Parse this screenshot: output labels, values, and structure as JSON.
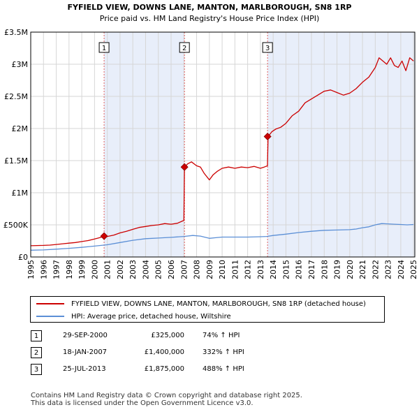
{
  "colors": {
    "price_line": "#cc0000",
    "hpi_line": "#5b8fd6",
    "band": "#e8eefa",
    "grid": "#d6d6d6",
    "marker_line": "#e06060"
  },
  "chart_data": {
    "type": "line",
    "title": "FYFIELD VIEW, DOWNS LANE, MANTON, MARLBOROUGH, SN8 1RP",
    "subtitle": "Price paid vs. HM Land Registry's House Price Index (HPI)",
    "xlabel": "",
    "ylabel": "",
    "xlim": [
      1995,
      2025.1
    ],
    "ylim": [
      0,
      3500000
    ],
    "x_ticks": [
      "1995",
      "1996",
      "1997",
      "1998",
      "1999",
      "2000",
      "2001",
      "2002",
      "2003",
      "2004",
      "2005",
      "2006",
      "2007",
      "2008",
      "2009",
      "2010",
      "2011",
      "2012",
      "2013",
      "2014",
      "2015",
      "2016",
      "2017",
      "2018",
      "2019",
      "2020",
      "2021",
      "2022",
      "2023",
      "2024",
      "2025"
    ],
    "y_ticks": [
      {
        "value": 0,
        "label": "£0"
      },
      {
        "value": 500000,
        "label": "£500K"
      },
      {
        "value": 1000000,
        "label": "£1M"
      },
      {
        "value": 1500000,
        "label": "£1.5M"
      },
      {
        "value": 2000000,
        "label": "£2M"
      },
      {
        "value": 2500000,
        "label": "£2.5M"
      },
      {
        "value": 3000000,
        "label": "£3M"
      },
      {
        "value": 3500000,
        "label": "£3.5M"
      }
    ],
    "grid": true,
    "series": [
      {
        "name": "FYFIELD VIEW, DOWNS LANE, MANTON, MARLBOROUGH, SN8 1RP (detached house)",
        "color": "#cc0000",
        "x": [
          1995.0,
          1995.5,
          1996.0,
          1996.5,
          1997.0,
          1997.5,
          1998.0,
          1998.5,
          1999.0,
          1999.5,
          2000.0,
          2000.5,
          2000.75,
          2001.0,
          2001.5,
          2002.0,
          2002.5,
          2003.0,
          2003.5,
          2004.0,
          2004.5,
          2005.0,
          2005.5,
          2006.0,
          2006.5,
          2007.0,
          2007.05,
          2007.3,
          2007.6,
          2008.0,
          2008.3,
          2008.6,
          2009.0,
          2009.3,
          2009.6,
          2010.0,
          2010.5,
          2011.0,
          2011.5,
          2012.0,
          2012.5,
          2013.0,
          2013.3,
          2013.55,
          2013.6,
          2013.9,
          2014.2,
          2014.6,
          2015.0,
          2015.5,
          2016.0,
          2016.5,
          2017.0,
          2017.5,
          2018.0,
          2018.5,
          2019.0,
          2019.5,
          2020.0,
          2020.5,
          2021.0,
          2021.5,
          2022.0,
          2022.3,
          2022.6,
          2022.9,
          2023.2,
          2023.5,
          2023.8,
          2024.1,
          2024.4,
          2024.7,
          2025.0
        ],
        "values": [
          175000,
          178000,
          180000,
          185000,
          195000,
          205000,
          215000,
          225000,
          240000,
          255000,
          280000,
          305000,
          325000,
          320000,
          340000,
          375000,
          400000,
          430000,
          460000,
          475000,
          490000,
          500000,
          520000,
          510000,
          525000,
          570000,
          1400000,
          1450000,
          1480000,
          1420000,
          1400000,
          1300000,
          1200000,
          1280000,
          1330000,
          1380000,
          1400000,
          1380000,
          1400000,
          1390000,
          1410000,
          1380000,
          1400000,
          1420000,
          1875000,
          1950000,
          1990000,
          2020000,
          2080000,
          2200000,
          2270000,
          2400000,
          2460000,
          2520000,
          2580000,
          2600000,
          2560000,
          2520000,
          2550000,
          2620000,
          2720000,
          2800000,
          2950000,
          3100000,
          3050000,
          3000000,
          3100000,
          2980000,
          2950000,
          3050000,
          2900000,
          3100000,
          3050000
        ]
      },
      {
        "name": "HPI: Average price, detached house, Wiltshire",
        "color": "#5b8fd6",
        "x": [
          1995.0,
          1996.0,
          1997.0,
          1998.0,
          1999.0,
          2000.0,
          2001.0,
          2002.0,
          2003.0,
          2004.0,
          2005.0,
          2006.0,
          2007.0,
          2007.7,
          2008.3,
          2009.0,
          2009.5,
          2010.0,
          2011.0,
          2012.0,
          2013.0,
          2013.5,
          2014.0,
          2015.0,
          2016.0,
          2017.0,
          2018.0,
          2019.0,
          2020.0,
          2020.5,
          2021.0,
          2021.5,
          2022.0,
          2022.5,
          2023.0,
          2023.5,
          2024.0,
          2024.5,
          2025.0
        ],
        "values": [
          105000,
          110000,
          122000,
          135000,
          150000,
          170000,
          190000,
          225000,
          260000,
          285000,
          295000,
          305000,
          320000,
          335000,
          325000,
          290000,
          300000,
          310000,
          310000,
          310000,
          315000,
          320000,
          335000,
          355000,
          380000,
          400000,
          415000,
          420000,
          425000,
          435000,
          455000,
          470000,
          500000,
          520000,
          515000,
          510000,
          505000,
          500000,
          505000
        ]
      }
    ],
    "sales": [
      {
        "label": "1",
        "x": 2000.75,
        "value": 325000
      },
      {
        "label": "2",
        "x": 2007.05,
        "value": 1400000
      },
      {
        "label": "3",
        "x": 2013.56,
        "value": 1875000
      }
    ],
    "bands": [
      [
        2000.75,
        2007.05
      ],
      [
        2013.56,
        2025.1
      ]
    ]
  },
  "legend": {
    "items": [
      {
        "label": "FYFIELD VIEW, DOWNS LANE, MANTON, MARLBOROUGH, SN8 1RP (detached house)"
      },
      {
        "label": "HPI: Average price, detached house, Wiltshire"
      }
    ]
  },
  "transactions": [
    {
      "num": "1",
      "date": "29-SEP-2000",
      "price": "£325,000",
      "hpi": "74% ↑ HPI"
    },
    {
      "num": "2",
      "date": "18-JAN-2007",
      "price": "£1,400,000",
      "hpi": "332% ↑ HPI"
    },
    {
      "num": "3",
      "date": "25-JUL-2013",
      "price": "£1,875,000",
      "hpi": "488% ↑ HPI"
    }
  ],
  "footer": {
    "line1": "Contains HM Land Registry data © Crown copyright and database right 2025.",
    "line2": "This data is licensed under the Open Government Licence v3.0."
  }
}
